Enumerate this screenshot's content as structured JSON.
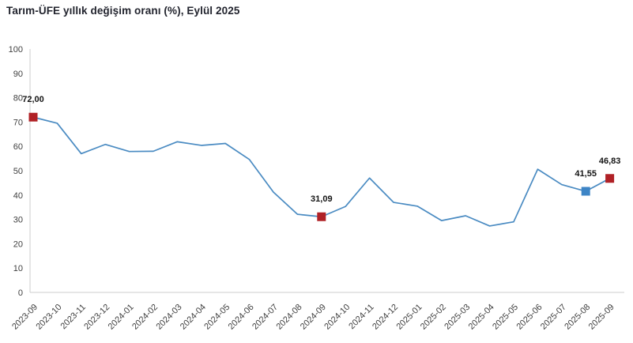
{
  "header": {
    "title": "Tarım-ÜFE yıllık değişim oranı (%), Eylül 2025"
  },
  "chart_data": {
    "type": "line",
    "title": "Tarım-ÜFE yıllık değişim oranı (%), Eylül 2025",
    "categories": [
      "2023-09",
      "2023-10",
      "2023-11",
      "2023-12",
      "2024-01",
      "2024-02",
      "2024-03",
      "2024-04",
      "2024-05",
      "2024-06",
      "2024-07",
      "2024-08",
      "2024-09",
      "2024-10",
      "2024-11",
      "2024-12",
      "2025-01",
      "2025-02",
      "2025-03",
      "2025-04",
      "2025-05",
      "2025-06",
      "2025-07",
      "2025-08",
      "2025-09"
    ],
    "values": [
      72.0,
      69.5,
      57.0,
      60.8,
      57.9,
      58.0,
      61.9,
      60.4,
      61.2,
      54.6,
      41.2,
      32.1,
      31.09,
      35.3,
      47.0,
      37.0,
      35.4,
      29.5,
      31.5,
      27.3,
      29.0,
      50.6,
      44.3,
      41.55,
      46.83
    ],
    "xlabel": "",
    "ylabel": "",
    "ylim": [
      0,
      100
    ],
    "ytick_step": 10,
    "grid": false,
    "legend": "none",
    "x_tick_rotation": -45,
    "line_color": "#4a8bc2",
    "axis_color": "#cccccc",
    "tick_label_color": "#3f3f3f",
    "point_label_color": "#141414",
    "annotations": [
      {
        "category": "2023-09",
        "index": 0,
        "label": "72,00",
        "marker_color": "#b02126"
      },
      {
        "category": "2024-09",
        "index": 12,
        "label": "31,09",
        "marker_color": "#b02126"
      },
      {
        "category": "2025-08",
        "index": 23,
        "label": "41,55",
        "marker_color": "#3d85c6"
      },
      {
        "category": "2025-09",
        "index": 24,
        "label": "46,83",
        "marker_color": "#b02126"
      }
    ]
  }
}
